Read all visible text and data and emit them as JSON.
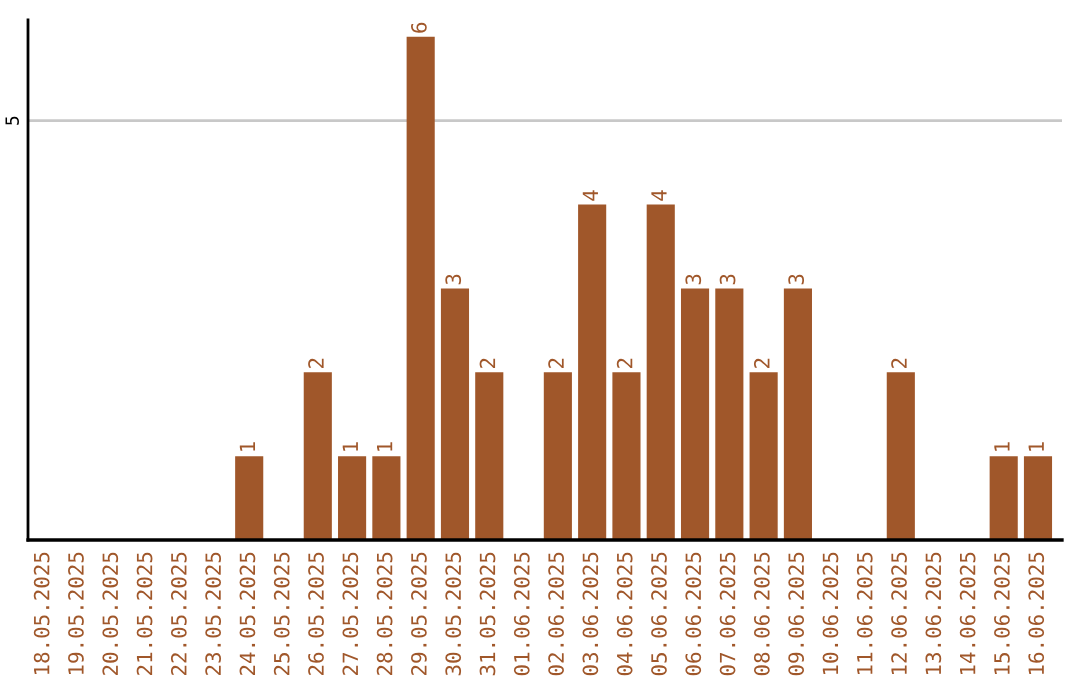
{
  "chart_data": {
    "type": "bar",
    "categories": [
      "18.05.2025",
      "19.05.2025",
      "20.05.2025",
      "21.05.2025",
      "22.05.2025",
      "23.05.2025",
      "24.05.2025",
      "25.05.2025",
      "26.05.2025",
      "27.05.2025",
      "28.05.2025",
      "29.05.2025",
      "30.05.2025",
      "31.05.2025",
      "01.06.2025",
      "02.06.2025",
      "03.06.2025",
      "04.06.2025",
      "05.06.2025",
      "06.06.2025",
      "07.06.2025",
      "08.06.2025",
      "09.06.2025",
      "10.06.2025",
      "11.06.2025",
      "12.06.2025",
      "13.06.2025",
      "14.06.2025",
      "15.06.2025",
      "16.06.2025"
    ],
    "values": [
      0,
      0,
      0,
      0,
      0,
      0,
      1,
      0,
      2,
      1,
      1,
      6,
      3,
      2,
      0,
      2,
      4,
      2,
      4,
      3,
      3,
      2,
      3,
      0,
      0,
      2,
      0,
      0,
      1,
      1
    ],
    "value_labels": [
      null,
      null,
      null,
      null,
      null,
      null,
      "1",
      null,
      "2",
      "1",
      "1",
      "6",
      "3",
      "2",
      null,
      "2",
      "4",
      "2",
      "4",
      "3",
      "3",
      "2",
      "3",
      null,
      null,
      "2",
      null,
      null,
      "1",
      "1"
    ],
    "color": "#a0572a",
    "ylim": [
      0,
      6.2
    ],
    "yticks": [
      5
    ],
    "grid": "y",
    "legend": false
  }
}
